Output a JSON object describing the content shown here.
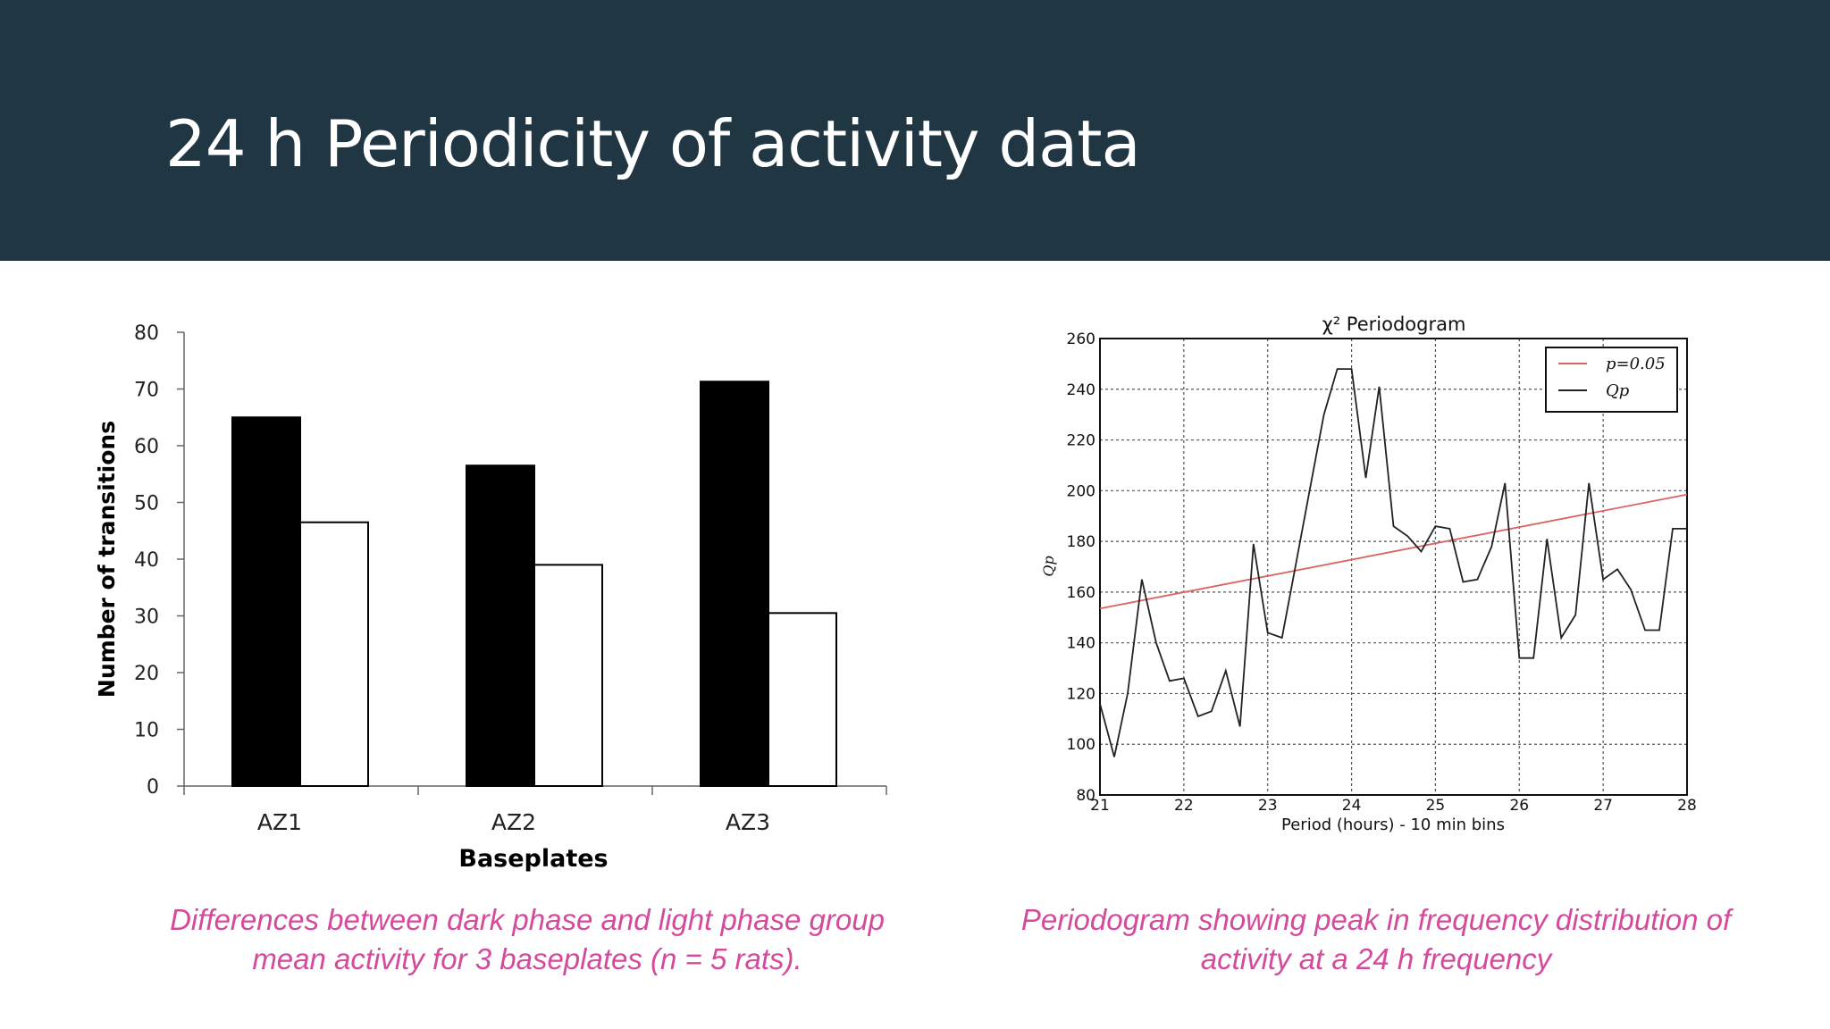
{
  "slide": {
    "title": "24 h Periodicity of activity data",
    "caption_left": "Differences between dark phase and light phase group mean activity for 3 baseplates (n = 5 rats).",
    "caption_right": "Periodogram showing peak in frequency distribution of activity at a 24 h frequency"
  },
  "colors": {
    "header_bg": "#213643",
    "caption": "#d54a9b",
    "dark_bar": "#000000",
    "light_bar": "#ffffff",
    "p_line": "#d96464",
    "qp_line": "#222222"
  },
  "chart_data": [
    {
      "type": "bar",
      "title": "",
      "xlabel": "Baseplates",
      "ylabel": "Number of transitions",
      "categories": [
        "AZ1",
        "AZ2",
        "AZ3"
      ],
      "series": [
        {
          "values": [
            65,
            56.5,
            71.3
          ]
        },
        {
          "values": [
            46.5,
            39,
            30.5
          ]
        }
      ],
      "ylim": [
        0,
        80
      ],
      "yticks": [
        0,
        10,
        20,
        30,
        40,
        50,
        60,
        70,
        80
      ],
      "grid": false
    },
    {
      "type": "line",
      "title": "χ² Periodogram",
      "xlabel": "Period (hours) - 10 min bins",
      "ylabel": "Qp",
      "xlim": [
        21,
        28
      ],
      "ylim": [
        80,
        260
      ],
      "xticks": [
        21,
        22,
        23,
        24,
        25,
        26,
        27,
        28
      ],
      "yticks": [
        80,
        100,
        120,
        140,
        160,
        180,
        200,
        220,
        240,
        260
      ],
      "grid": true,
      "legend_position": "top-right",
      "series": [
        {
          "name": "p=0.05",
          "x": [
            21,
            28
          ],
          "y": [
            153.5,
            198.5
          ]
        },
        {
          "name": "Qp",
          "x": [
            21.0,
            21.17,
            21.33,
            21.5,
            21.67,
            21.83,
            22.0,
            22.17,
            22.33,
            22.5,
            22.67,
            22.83,
            23.0,
            23.17,
            23.33,
            23.5,
            23.67,
            23.83,
            24.0,
            24.17,
            24.33,
            24.5,
            24.67,
            24.83,
            25.0,
            25.17,
            25.33,
            25.5,
            25.67,
            25.83,
            26.0,
            26.17,
            26.33,
            26.5,
            26.67,
            26.83,
            27.0,
            27.17,
            27.33,
            27.5,
            27.67,
            27.83,
            28.0
          ],
          "y": [
            116,
            95,
            120,
            165,
            140,
            125,
            126,
            111,
            113,
            129,
            107,
            179,
            144,
            142,
            170,
            200,
            230,
            248,
            248,
            205,
            241,
            186,
            182,
            176,
            186,
            185,
            164,
            165,
            178,
            203,
            134,
            134,
            181,
            142,
            151,
            203,
            165,
            169,
            161,
            145,
            145,
            185,
            185
          ]
        }
      ]
    }
  ]
}
